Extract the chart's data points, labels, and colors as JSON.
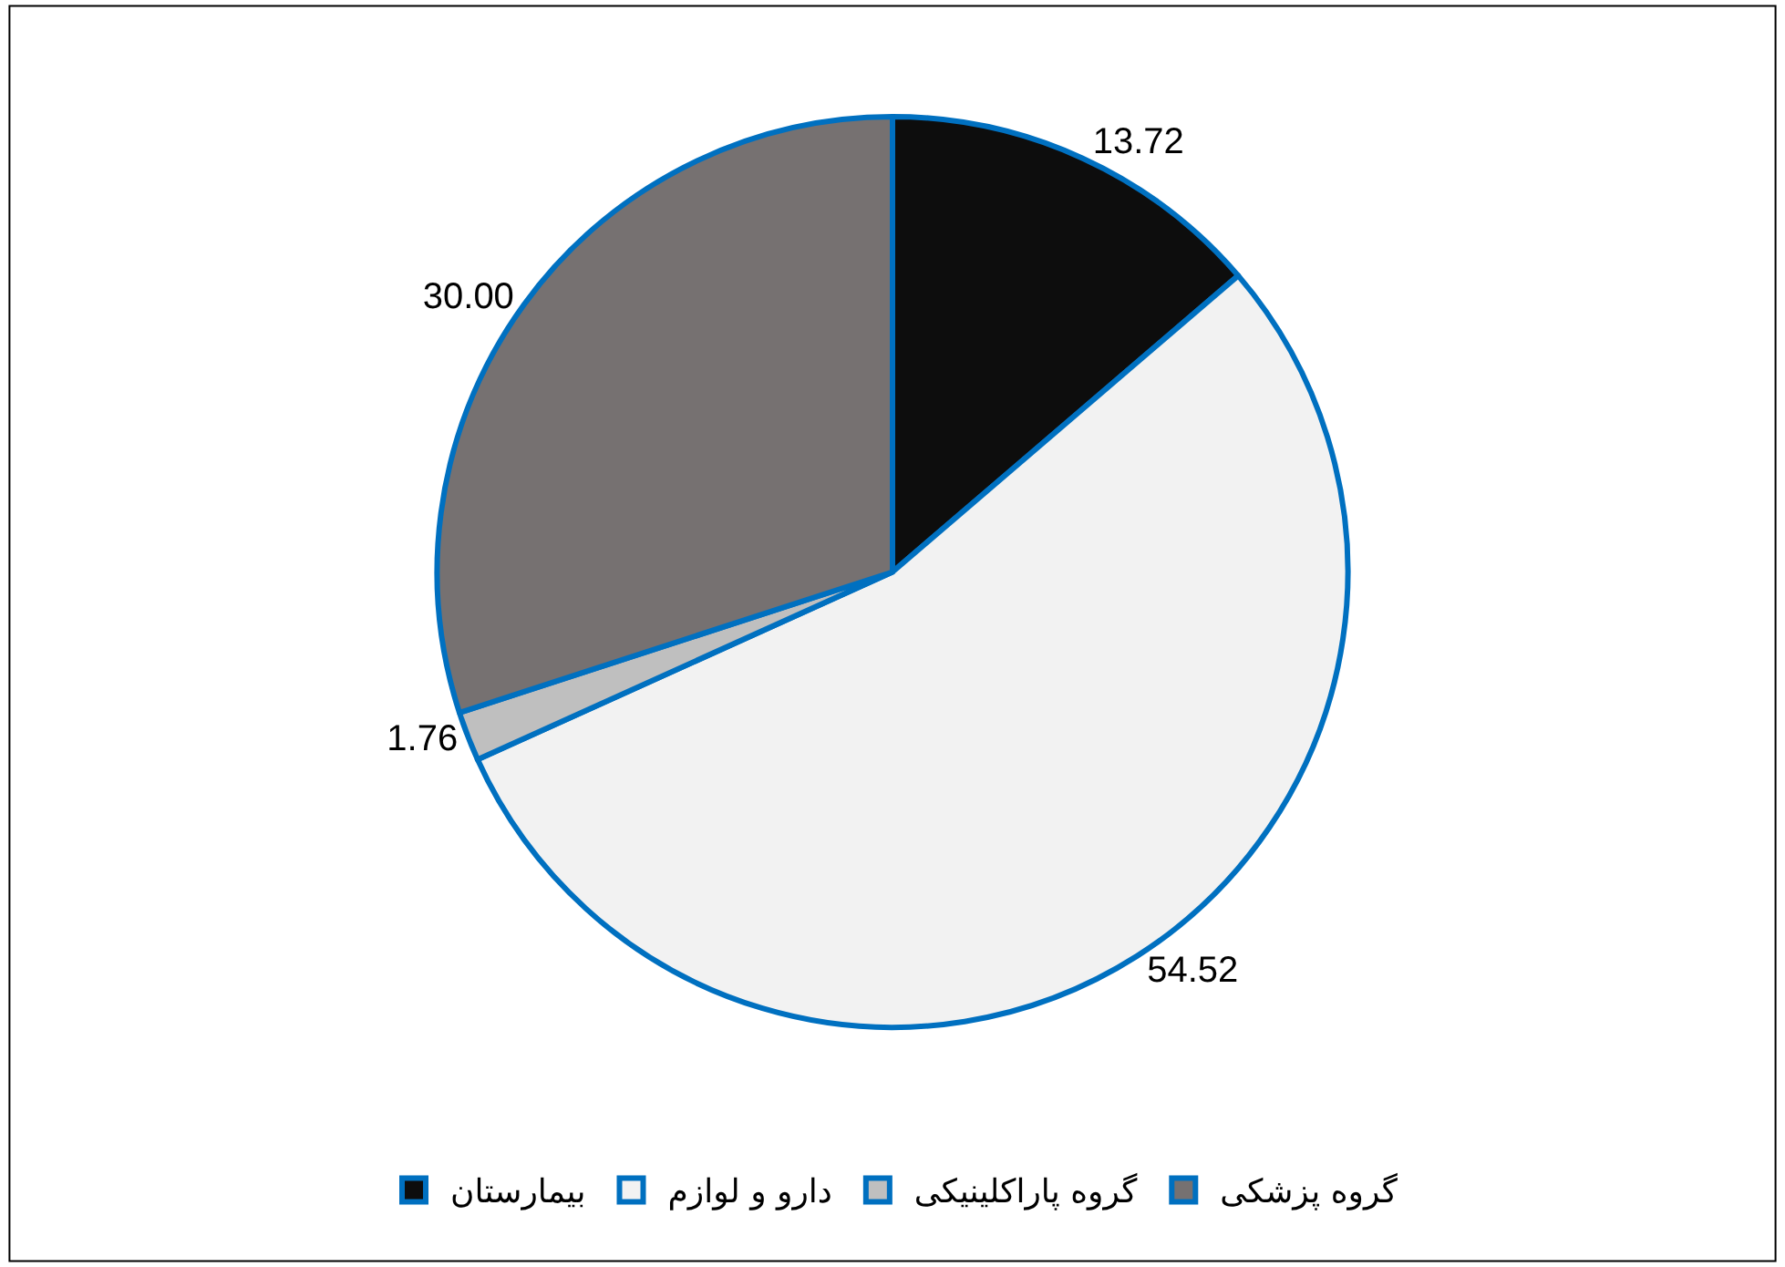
{
  "chart_data": {
    "type": "pie",
    "categories": [
      "بیمارستان",
      "دارو و لوازم",
      "گروه پاراکلینیکی",
      "گروه پزشکی"
    ],
    "values": [
      13.72,
      54.52,
      1.76,
      30.0
    ],
    "value_labels": [
      "13.72",
      "54.52",
      "1.76",
      "30.00"
    ],
    "colors": [
      "#0d0d0d",
      "#f2f2f2",
      "#bfbfbf",
      "#767171"
    ],
    "legend": "bottom"
  }
}
